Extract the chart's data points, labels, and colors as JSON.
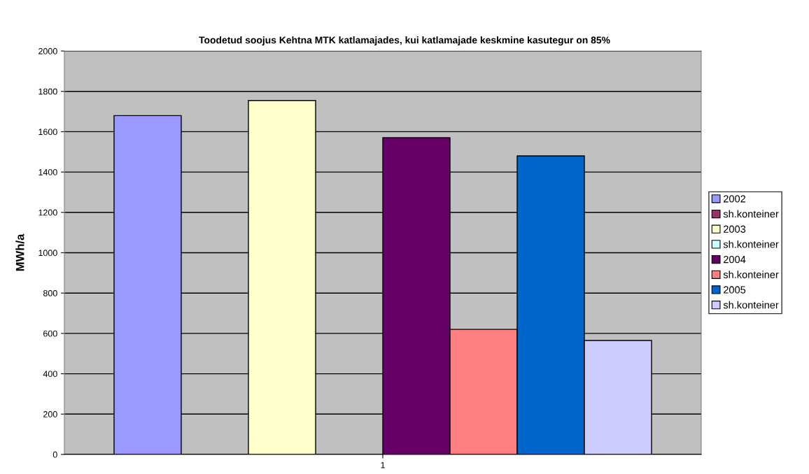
{
  "chart_data": {
    "type": "bar",
    "title": "Toodetud soojus Kehtna MTK katlamajades, kui katlamajade keskmine kasutegur on 85%",
    "ylabel": "MWh/a",
    "categories": [
      "1"
    ],
    "series": [
      {
        "name": "2002",
        "color": "#9999ff",
        "values": [
          1680
        ]
      },
      {
        "name": "sh.konteiner",
        "color": "#993366",
        "values": [
          null
        ]
      },
      {
        "name": "2003",
        "color": "#ffffcc",
        "values": [
          1755
        ]
      },
      {
        "name": "sh.konteiner",
        "color": "#ccffff",
        "values": [
          null
        ]
      },
      {
        "name": "2004",
        "color": "#660066",
        "values": [
          1570
        ]
      },
      {
        "name": "sh.konteiner",
        "color": "#ff8080",
        "values": [
          620
        ]
      },
      {
        "name": "2005",
        "color": "#0066cc",
        "values": [
          1480
        ]
      },
      {
        "name": "sh.konteiner",
        "color": "#ccccff",
        "values": [
          565
        ]
      }
    ],
    "ylim": [
      0,
      2000
    ],
    "yticks": [
      0,
      200,
      400,
      600,
      800,
      1000,
      1200,
      1400,
      1600,
      1800,
      2000
    ],
    "grid": "y",
    "legend": "right"
  }
}
